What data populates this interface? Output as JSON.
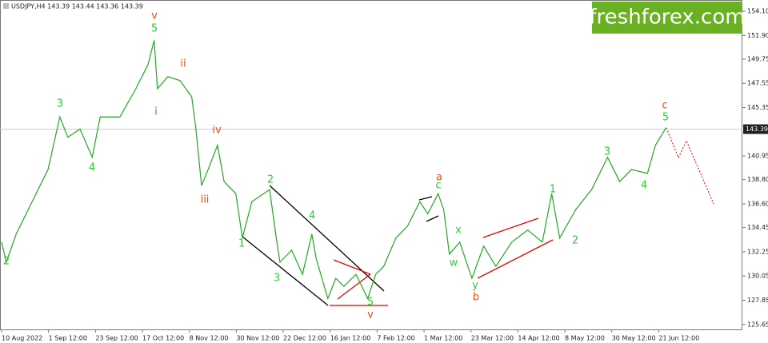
{
  "header": "USDJPY,H4  143.39 143.44 143.36 143.39",
  "watermark": "freshforex.com",
  "chart_data": {
    "type": "line",
    "series": [
      {
        "name": "USDJPY",
        "color": "#22aa22",
        "x": [
          0,
          1.0,
          3.1,
          6.5,
          9.9,
          12.4,
          14.1,
          16.7,
          19.3,
          21.0,
          25.2,
          28.6,
          31.2,
          32.5,
          33.2,
          35.4,
          38.0,
          40.5,
          41.4,
          42.6,
          44.0,
          46.0,
          47.4,
          49.9,
          51.3,
          53.3,
          57.1,
          58.4,
          59.3,
          61.8,
          64.1,
          66.1,
          67.0,
          69.5,
          71.2,
          72.9,
          75.5,
          78.0,
          79.7,
          81.4,
          84.0,
          86.5,
          89.1,
          90.8,
          93.0,
          94.2,
          95.4,
          97.6,
          100.2,
          102.7,
          105.3,
          108.7,
          112.1,
          115.2,
          117.2,
          118.9,
          122.3,
          125.7,
          129.1,
          131.7,
          134.2,
          137.6,
          139.3,
          141.6
        ],
        "values": [
          133.13,
          131.3,
          133.86,
          136.8,
          139.73,
          144.5,
          142.66,
          143.4,
          140.83,
          144.5,
          144.5,
          147.06,
          149.26,
          151.46,
          147.06,
          148.16,
          147.8,
          146.33,
          143.4,
          138.27,
          139.73,
          141.93,
          138.63,
          137.53,
          133.5,
          136.8,
          137.9,
          133.86,
          131.3,
          132.4,
          130.2,
          133.86,
          131.67,
          128.0,
          129.84,
          129.1,
          130.2,
          128.0,
          130.2,
          130.93,
          133.5,
          134.6,
          136.8,
          135.7,
          137.53,
          136.07,
          132.03,
          133.13,
          129.84,
          132.77,
          130.93,
          133.13,
          134.23,
          133.13,
          137.53,
          133.5,
          136.07,
          137.9,
          140.83,
          138.63,
          139.73,
          139.37,
          141.93,
          143.54
        ]
      }
    ],
    "ylim": [
      125.2,
      155.12
    ],
    "yticks": [
      {
        "value": 154.1,
        "label": "154.10"
      },
      {
        "value": 151.9,
        "label": "151.90"
      },
      {
        "value": 149.75,
        "label": "149.75"
      },
      {
        "value": 147.55,
        "label": "147.55"
      },
      {
        "value": 145.35,
        "label": "145.35"
      },
      {
        "value": 140.95,
        "label": "140.95"
      },
      {
        "value": 138.8,
        "label": "138.80"
      },
      {
        "value": 136.6,
        "label": "136.60"
      },
      {
        "value": 134.45,
        "label": "134.45"
      },
      {
        "value": 132.25,
        "label": "132.25"
      },
      {
        "value": 130.05,
        "label": "130.05"
      },
      {
        "value": 127.85,
        "label": "127.85"
      },
      {
        "value": 125.65,
        "label": "125.65"
      }
    ],
    "xlim": [
      0,
      158
    ],
    "xticks": [
      {
        "value": 0,
        "label": "10 Aug 2022"
      },
      {
        "value": 10,
        "label": "1 Sep 12:00"
      },
      {
        "value": 20,
        "label": "23 Sep 12:00"
      },
      {
        "value": 30,
        "label": "17 Oct 12:00"
      },
      {
        "value": 40,
        "label": "8 Nov 12:00"
      },
      {
        "value": 50,
        "label": "30 Nov 12:00"
      },
      {
        "value": 60,
        "label": "22 Dec 12:00"
      },
      {
        "value": 70,
        "label": "16 Jan 12:00"
      },
      {
        "value": 80,
        "label": "7 Feb 12:00"
      },
      {
        "value": 90,
        "label": "1 Mar 12:00"
      },
      {
        "value": 100,
        "label": "23 Mar 12:00"
      },
      {
        "value": 110,
        "label": "14 Apr 12:00"
      },
      {
        "value": 120,
        "label": "8 May 12:00"
      },
      {
        "value": 130,
        "label": "30 May 12:00"
      },
      {
        "value": 140,
        "label": "21 Jun 12:00"
      }
    ],
    "current_price": 143.39,
    "annotations": [
      {
        "text": "v",
        "color": "#e8501a"
      },
      {
        "text": "5",
        "color": "#33cc33"
      },
      {
        "text": "ii",
        "color": "#e8501a"
      },
      {
        "text": "i",
        "color": "#e8501a"
      },
      {
        "text": "3",
        "color": "#33cc33"
      },
      {
        "text": "4",
        "color": "#33cc33"
      },
      {
        "text": "2",
        "color": "#33cc33"
      },
      {
        "text": "iv",
        "color": "#e8501a"
      },
      {
        "text": "iii",
        "color": "#e8501a"
      },
      {
        "text": "2",
        "color": "#33cc33"
      },
      {
        "text": "1",
        "color": "#33cc33"
      },
      {
        "text": "4",
        "color": "#33cc33"
      },
      {
        "text": "3",
        "color": "#33cc33"
      },
      {
        "text": "5",
        "color": "#33cc33"
      },
      {
        "text": "v",
        "color": "#e8501a"
      },
      {
        "text": "a",
        "color": "#e8501a"
      },
      {
        "text": "c",
        "color": "#33cc33"
      },
      {
        "text": "x",
        "color": "#33cc33"
      },
      {
        "text": "w",
        "color": "#33cc33"
      },
      {
        "text": "y",
        "color": "#33cc33"
      },
      {
        "text": "b",
        "color": "#e8501a"
      },
      {
        "text": "1",
        "color": "#33cc33"
      },
      {
        "text": "2",
        "color": "#33cc33"
      },
      {
        "text": "3",
        "color": "#33cc33"
      },
      {
        "text": "4",
        "color": "#33cc33"
      },
      {
        "text": "c",
        "color": "#e8501a"
      },
      {
        "text": "5",
        "color": "#33cc33"
      }
    ]
  }
}
